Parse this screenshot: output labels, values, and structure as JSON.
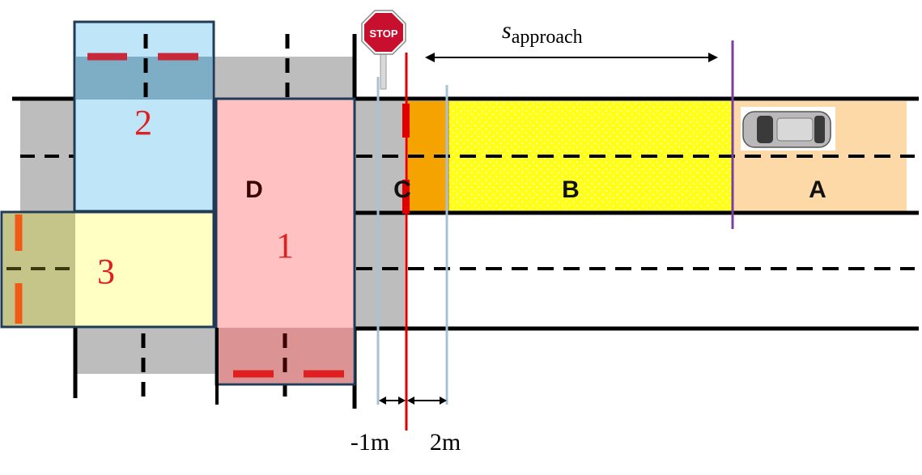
{
  "stop_sign": {
    "text": "STOP",
    "color": "#c8102e"
  },
  "regions": {
    "A": {
      "label": "A",
      "color": "#fcd9a6"
    },
    "B": {
      "label": "B",
      "color": "#ffff1a"
    },
    "C": {
      "label": "C",
      "color": "#f4a300"
    },
    "D": {
      "label": "D"
    }
  },
  "zones": {
    "1": {
      "label": "1",
      "color": "#ffc1c1"
    },
    "2": {
      "label": "2",
      "color": "#bfe6f8"
    },
    "3": {
      "label": "3",
      "color": "#ffffc4"
    }
  },
  "approach": {
    "symbol": "s",
    "subscript": "approach"
  },
  "offsets": {
    "left": "-1m",
    "right": "2m"
  },
  "colors": {
    "road_gray": "#bdbdbd",
    "stop_line": "#e00000",
    "approach_line": "#7a3fa0",
    "ref_line": "#a9c1d6",
    "zone_border": "#1f3b57",
    "dash_red": "#e02020"
  },
  "icons": {
    "vehicle": "car-top-view-icon"
  }
}
